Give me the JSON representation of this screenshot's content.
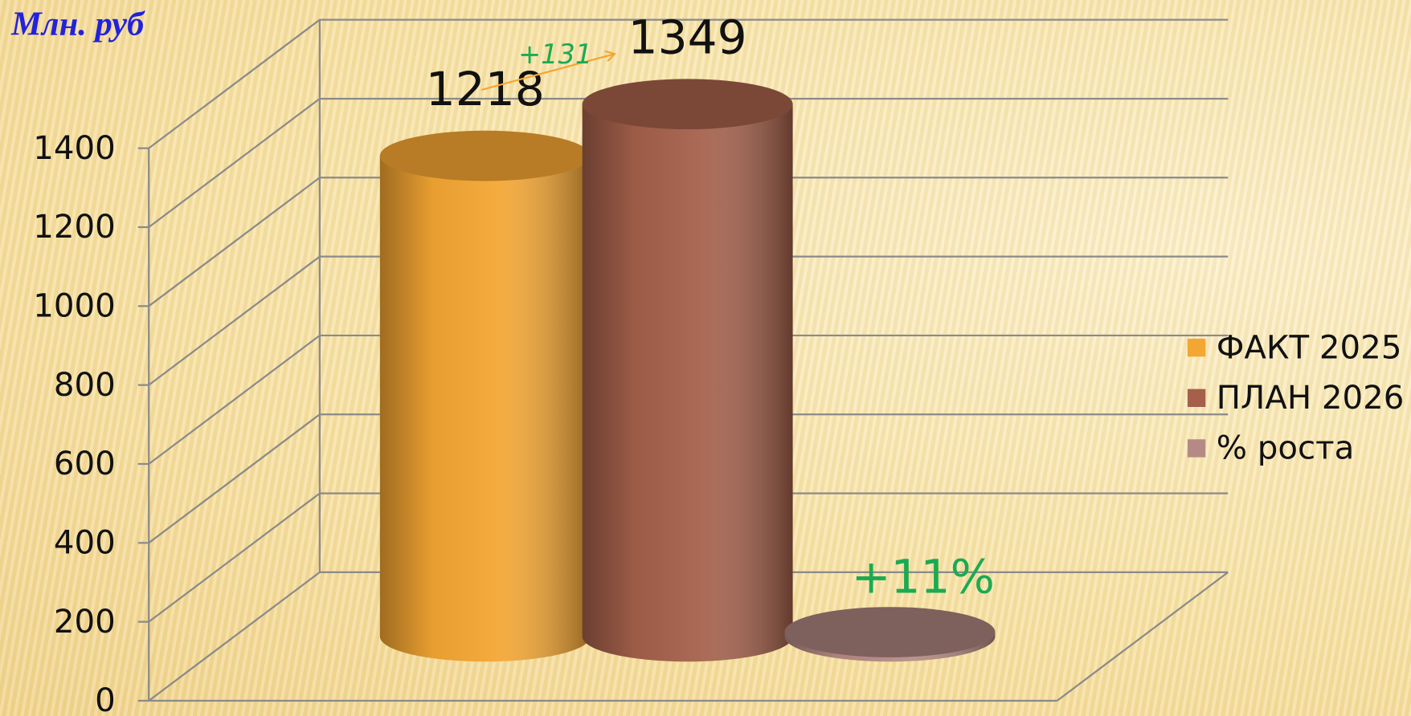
{
  "chart_data": {
    "type": "bar3d",
    "title": "Млн. руб",
    "series": [
      {
        "name": "ФАКТ 2025",
        "color": "#f4a632",
        "values": [
          1218
        ]
      },
      {
        "name": "ПЛАН 2026",
        "color": "#a4604a",
        "values": [
          1349
        ]
      },
      {
        "name": "% роста",
        "color": "#b58a84",
        "values": [
          11
        ],
        "value_labels": [
          "+11%"
        ],
        "label_color": "#1aab52"
      }
    ],
    "annotations": [
      {
        "text": "+131",
        "color": "#1aab52",
        "arrow_color": "#f4a632"
      }
    ],
    "ylim": [
      0,
      1400
    ],
    "yticks": [
      0,
      200,
      400,
      600,
      800,
      1000,
      1200,
      1400
    ],
    "grid": true,
    "legend": "right"
  }
}
